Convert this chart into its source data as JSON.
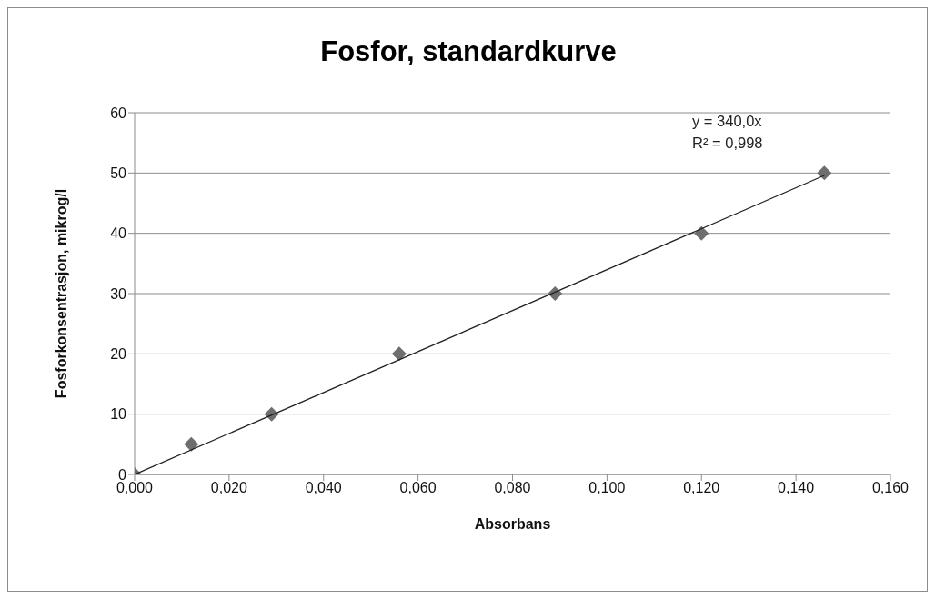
{
  "chart_data": {
    "type": "scatter",
    "title": "Fosfor, standardkurve",
    "xlabel": "Absorbans",
    "ylabel": "Fosforkonsentrasjon, mikrog/l",
    "x": [
      0,
      0.012,
      0.029,
      0.056,
      0.089,
      0.12,
      0.146
    ],
    "series": [
      {
        "color": "#6e6e6e",
        "marker": "diamond",
        "values": [
          0,
          5,
          10,
          20,
          30,
          40,
          50
        ]
      },
      {
        "type": "line",
        "color": "#222222",
        "marker": "none",
        "x": [
          0,
          0.146
        ],
        "values": [
          0,
          49.6
        ]
      }
    ],
    "xlim": [
      0,
      0.16
    ],
    "xticks": [
      {
        "value": 0,
        "label": "0,000"
      },
      {
        "value": 0.02,
        "label": "0,020"
      },
      {
        "value": 0.04,
        "label": "0,040"
      },
      {
        "value": 0.06,
        "label": "0,060"
      },
      {
        "value": 0.08,
        "label": "0,080"
      },
      {
        "value": 0.1,
        "label": "0,100"
      },
      {
        "value": 0.12,
        "label": "0,120"
      },
      {
        "value": 0.14,
        "label": "0,140"
      },
      {
        "value": 0.16,
        "label": "0,160"
      }
    ],
    "ylim": [
      0,
      60
    ],
    "yticks": [
      0,
      10,
      20,
      30,
      40,
      50,
      60
    ],
    "grid": "y",
    "annotations": [
      "y = 340,0x",
      "R² = 0,998"
    ]
  }
}
